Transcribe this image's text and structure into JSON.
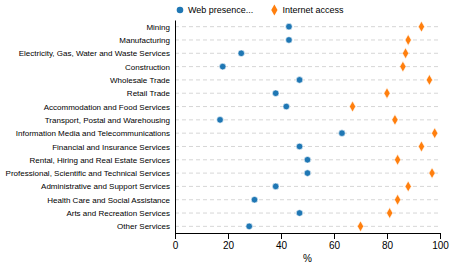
{
  "chart_data": {
    "type": "scatter",
    "orientation": "horizontal",
    "categories": [
      "Mining",
      "Manufacturing",
      "Electricity, Gas, Water and Waste Services",
      "Construction",
      "Wholesale Trade",
      "Retail Trade",
      "Accommodation and Food Services",
      "Transport, Postal and Warehousing",
      "Information Media and Telecommunications",
      "Financial and Insurance Services",
      "Rental, Hiring and Real Estate Services",
      "Professional, Scientific and Technical Services",
      "Administrative and Support Services",
      "Health Care and Social Assistance",
      "Arts and Recreation Services",
      "Other Services"
    ],
    "series": [
      {
        "name": "Web presence...",
        "marker": "circle",
        "values": [
          43,
          43,
          25,
          18,
          47,
          38,
          42,
          17,
          63,
          47,
          50,
          50,
          38,
          30,
          47,
          28
        ]
      },
      {
        "name": "Internet access",
        "marker": "diamond",
        "values": [
          93,
          88,
          87,
          86,
          96,
          80,
          67,
          83,
          98,
          93,
          84,
          97,
          88,
          84,
          81,
          70
        ]
      }
    ],
    "xlabel": "%",
    "xlim": [
      0,
      100
    ],
    "xticks": [
      0,
      20,
      40,
      60,
      80,
      100
    ],
    "grid": true,
    "legend": "top"
  }
}
